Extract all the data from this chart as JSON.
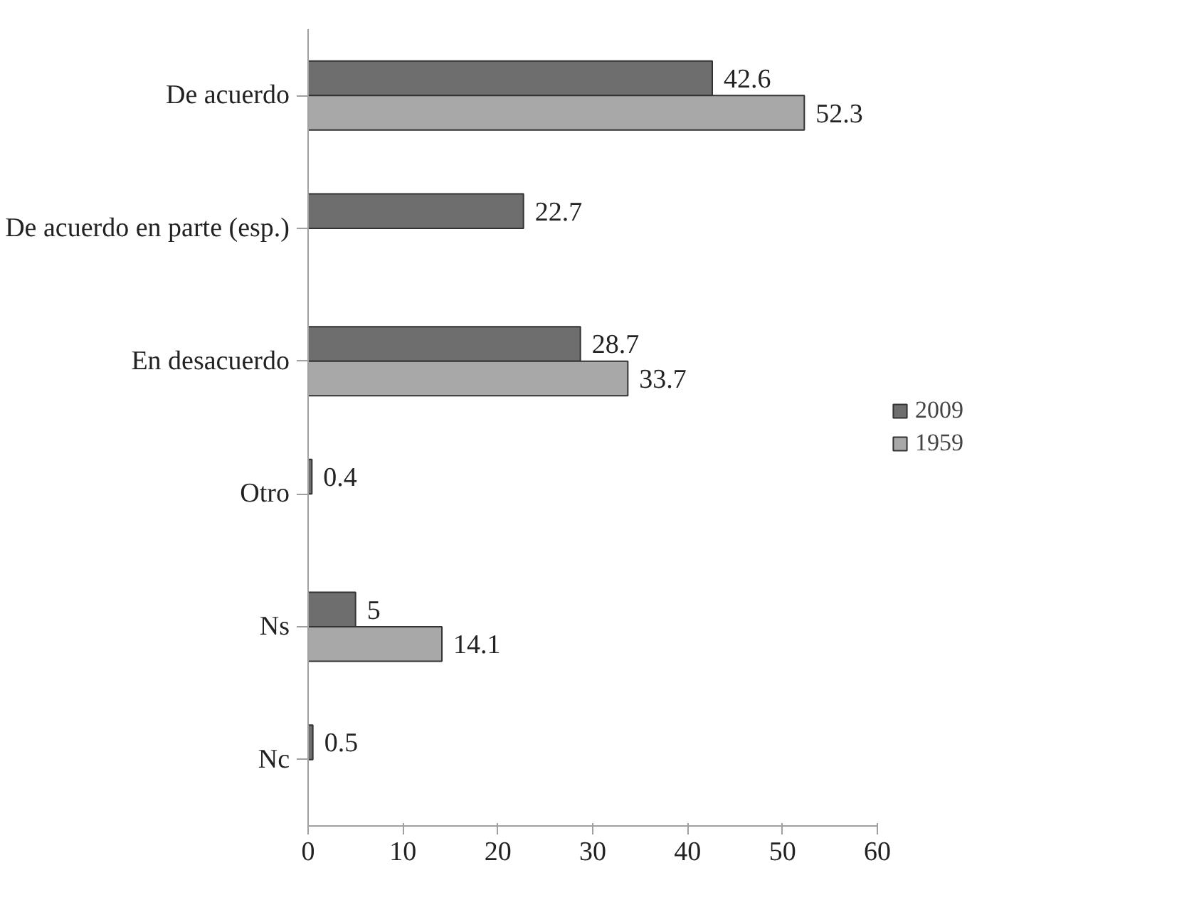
{
  "chart_data": {
    "type": "bar",
    "orientation": "horizontal",
    "categories": [
      "De acuerdo",
      "De acuerdo en parte (esp.)",
      "En desacuerdo",
      "Otro",
      "Ns",
      "Nc"
    ],
    "series": [
      {
        "name": "2009",
        "color": "#6e6e6e",
        "values": [
          42.6,
          22.7,
          28.7,
          0.4,
          5,
          0.5
        ]
      },
      {
        "name": "1959",
        "color": "#a8a8a8",
        "values": [
          52.3,
          null,
          33.7,
          null,
          14.1,
          null
        ]
      }
    ],
    "xlim": [
      0,
      60
    ],
    "xticks": [
      0,
      10,
      20,
      30,
      40,
      50,
      60
    ],
    "data_labels": true,
    "legend": "right",
    "grid": false
  }
}
